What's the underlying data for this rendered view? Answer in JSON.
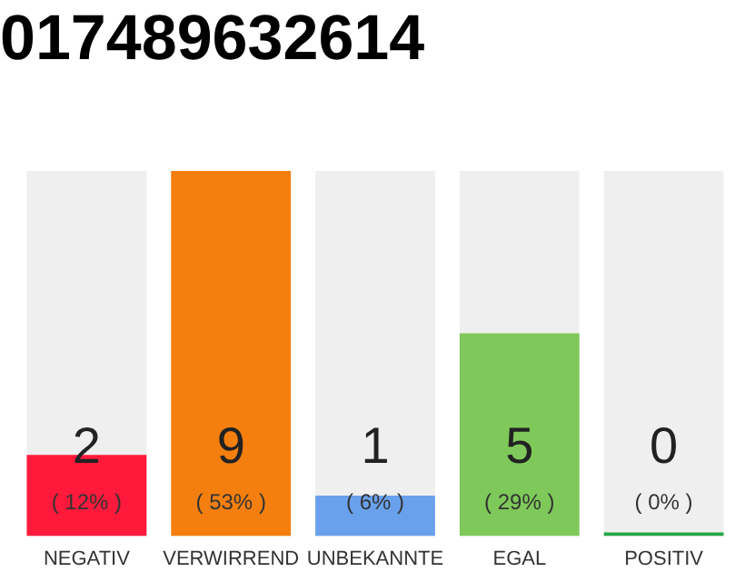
{
  "chart_data": {
    "type": "bar",
    "title": "017489632614",
    "categories": [
      "NEGATIV",
      "VERWIRREND",
      "UNBEKANNTE",
      "EGAL",
      "POSITIV"
    ],
    "values": [
      2,
      9,
      1,
      5,
      0
    ],
    "colors": [
      "#ff1a3c",
      "#f47f0e",
      "#6aa1ec",
      "#7ec95a",
      "#22a845"
    ],
    "value_labels": [
      "2",
      "9",
      "1",
      "5",
      "0"
    ],
    "annotations": [
      "( 12% )",
      "( 53% )",
      "( 6% )",
      "( 29% )",
      "( 0% )"
    ],
    "ylim": [
      0,
      9
    ],
    "tick_labels": "x",
    "grid": false,
    "legend": false
  }
}
